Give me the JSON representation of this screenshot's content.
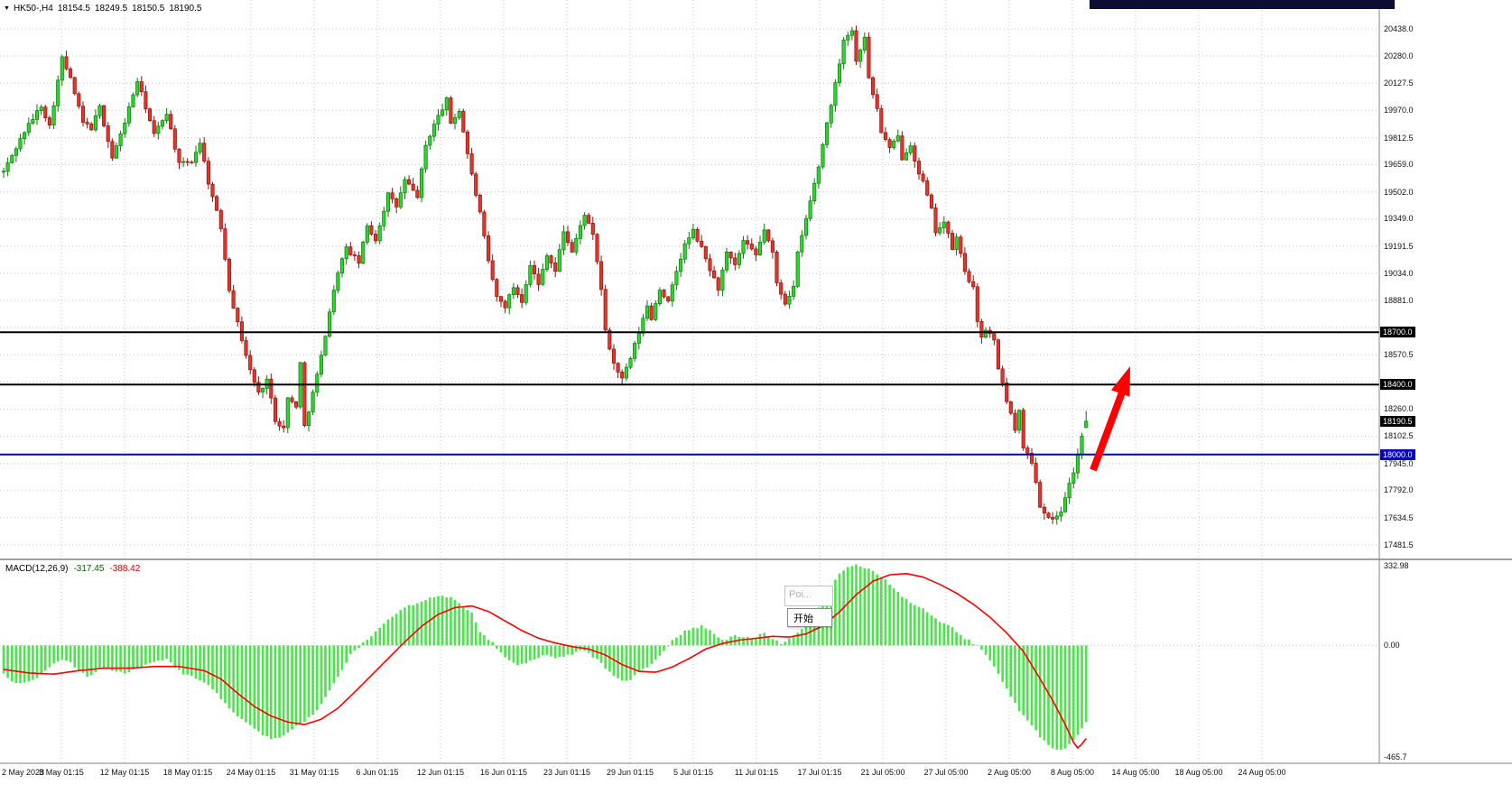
{
  "header": {
    "collapse_icon": "▼",
    "symbol_period": "HK50-,H4",
    "open": "18154.5",
    "high": "18249.5",
    "low": "18150.5",
    "close": "18190.5"
  },
  "macd_panel": {
    "label": "MACD(12,26,9)",
    "main_value": "-317.45",
    "signal_value": "-388.42",
    "axis_labels": [
      "332.98",
      "0.00",
      "-465.7"
    ]
  },
  "popup": {
    "tooltip_text": "Poi...",
    "button_text": "开始"
  },
  "colors": {
    "bull": "#2ed52e",
    "bull_border": "#0b7a0b",
    "bear": "#e5352b",
    "bear_border": "#8f130b",
    "grid": "#c4c4c4",
    "separator": "#808080",
    "macd_bar": "#4de34d",
    "macd_signal": "#ff0000",
    "level_black": "#000000",
    "level_blue": "#0000d2",
    "arrow": "#ff0f00",
    "axis_text": "#111111"
  },
  "price_axis": {
    "ticks": [
      "20438.0",
      "20280.0",
      "20127.5",
      "19970.0",
      "19812.5",
      "19659.0",
      "19502.0",
      "19349.0",
      "19191.5",
      "19034.0",
      "18881.0",
      "18570.5",
      "18260.0",
      "18102.5",
      "17945.0",
      "17792.0",
      "17634.5",
      "17481.5"
    ],
    "markers": [
      {
        "label": "18700.0",
        "value": 18700.0,
        "style": "black"
      },
      {
        "label": "18400.0",
        "value": 18400.0,
        "style": "black"
      },
      {
        "label": "18190.5",
        "value": 18190.5,
        "style": "black"
      },
      {
        "label": "18000.0",
        "value": 18000.0,
        "style": "blue"
      }
    ]
  },
  "time_axis": {
    "labels": [
      "2 May 2023",
      "8 May 01:15",
      "12 May 01:15",
      "18 May 01:15",
      "24 May 01:15",
      "31 May 01:15",
      "6 Jun 01:15",
      "12 Jun 01:15",
      "16 Jun 01:15",
      "23 Jun 01:15",
      "29 Jun 01:15",
      "5 Jul 01:15",
      "11 Jul 01:15",
      "17 Jul 01:15",
      "21 Jul 05:00",
      "27 Jul 05:00",
      "2 Aug 05:00",
      "8 Aug 05:00",
      "14 Aug 05:00",
      "18 Aug 05:00",
      "24 Aug 05:00"
    ]
  },
  "chart_data": {
    "type": "candlestick",
    "title": "HK50-,H4",
    "symbol": "HK50",
    "timeframe": "H4",
    "quote": {
      "open": 18154.5,
      "high": 18249.5,
      "low": 18150.5,
      "close": 18190.5
    },
    "visible_price_range": [
      17481.5,
      20438.0
    ],
    "candles_n": 260,
    "close_path": [
      [
        0,
        19620
      ],
      [
        5,
        19850
      ],
      [
        9,
        20000
      ],
      [
        11,
        19880
      ],
      [
        14,
        20270
      ],
      [
        16,
        20150
      ],
      [
        19,
        19900
      ],
      [
        21,
        19870
      ],
      [
        23,
        19990
      ],
      [
        26,
        19700
      ],
      [
        28,
        19830
      ],
      [
        32,
        20140
      ],
      [
        34,
        19990
      ],
      [
        36,
        19830
      ],
      [
        39,
        19960
      ],
      [
        42,
        19660
      ],
      [
        45,
        19680
      ],
      [
        47,
        19790
      ],
      [
        49,
        19560
      ],
      [
        52,
        19300
      ],
      [
        54,
        18950
      ],
      [
        56,
        18750
      ],
      [
        59,
        18480
      ],
      [
        61,
        18350
      ],
      [
        63,
        18430
      ],
      [
        65,
        18200
      ],
      [
        67,
        18150
      ],
      [
        68,
        18320
      ],
      [
        70,
        18280
      ],
      [
        71,
        18520
      ],
      [
        72,
        18160
      ],
      [
        74,
        18350
      ],
      [
        76,
        18560
      ],
      [
        78,
        18820
      ],
      [
        80,
        19050
      ],
      [
        82,
        19180
      ],
      [
        85,
        19100
      ],
      [
        87,
        19310
      ],
      [
        89,
        19230
      ],
      [
        92,
        19490
      ],
      [
        94,
        19420
      ],
      [
        96,
        19570
      ],
      [
        99,
        19480
      ],
      [
        101,
        19770
      ],
      [
        103,
        19890
      ],
      [
        106,
        20030
      ],
      [
        107,
        19900
      ],
      [
        109,
        19970
      ],
      [
        110,
        19850
      ],
      [
        112,
        19600
      ],
      [
        114,
        19380
      ],
      [
        116,
        19100
      ],
      [
        118,
        18900
      ],
      [
        120,
        18850
      ],
      [
        122,
        18960
      ],
      [
        124,
        18880
      ],
      [
        126,
        19090
      ],
      [
        128,
        18970
      ],
      [
        130,
        19150
      ],
      [
        132,
        19050
      ],
      [
        134,
        19280
      ],
      [
        136,
        19160
      ],
      [
        139,
        19380
      ],
      [
        141,
        19250
      ],
      [
        143,
        18950
      ],
      [
        144,
        18700
      ],
      [
        146,
        18520
      ],
      [
        148,
        18430
      ],
      [
        150,
        18550
      ],
      [
        152,
        18700
      ],
      [
        154,
        18850
      ],
      [
        155,
        18780
      ],
      [
        157,
        18950
      ],
      [
        159,
        18870
      ],
      [
        161,
        19050
      ],
      [
        163,
        19200
      ],
      [
        165,
        19280
      ],
      [
        167,
        19180
      ],
      [
        169,
        19060
      ],
      [
        171,
        18950
      ],
      [
        173,
        19150
      ],
      [
        175,
        19080
      ],
      [
        177,
        19220
      ],
      [
        180,
        19140
      ],
      [
        182,
        19290
      ],
      [
        184,
        19150
      ],
      [
        185,
        18980
      ],
      [
        187,
        18870
      ],
      [
        189,
        18960
      ],
      [
        190,
        19150
      ],
      [
        193,
        19450
      ],
      [
        195,
        19650
      ],
      [
        197,
        19900
      ],
      [
        199,
        20120
      ],
      [
        201,
        20380
      ],
      [
        203,
        20430
      ],
      [
        204,
        20250
      ],
      [
        206,
        20400
      ],
      [
        207,
        20150
      ],
      [
        209,
        19980
      ],
      [
        210,
        19850
      ],
      [
        212,
        19750
      ],
      [
        214,
        19820
      ],
      [
        215,
        19700
      ],
      [
        217,
        19780
      ],
      [
        219,
        19600
      ],
      [
        220,
        19560
      ],
      [
        222,
        19400
      ],
      [
        223,
        19280
      ],
      [
        225,
        19330
      ],
      [
        227,
        19180
      ],
      [
        228,
        19240
      ],
      [
        230,
        19050
      ],
      [
        232,
        18950
      ],
      [
        233,
        18750
      ],
      [
        234,
        18680
      ],
      [
        235,
        18720
      ],
      [
        237,
        18650
      ],
      [
        238,
        18480
      ],
      [
        239,
        18420
      ],
      [
        240,
        18300
      ],
      [
        242,
        18150
      ],
      [
        243,
        18250
      ],
      [
        244,
        18050
      ],
      [
        246,
        17950
      ],
      [
        247,
        17850
      ],
      [
        248,
        17700
      ],
      [
        250,
        17650
      ],
      [
        251,
        17620
      ],
      [
        253,
        17680
      ],
      [
        254,
        17760
      ],
      [
        256,
        17900
      ],
      [
        257,
        18000
      ],
      [
        258,
        18100
      ],
      [
        259,
        18190.5
      ]
    ],
    "support_resistance": [
      {
        "value": 18700.0,
        "color": "#000000"
      },
      {
        "value": 18400.0,
        "color": "#000000"
      },
      {
        "value": 18000.0,
        "color": "#0000d2"
      }
    ],
    "annotations": [
      {
        "type": "arrow",
        "direction": "up-right",
        "color": "#ff0000"
      }
    ],
    "macd": {
      "params": [
        12,
        26,
        9
      ],
      "main_last": -317.45,
      "signal_last": -388.42,
      "axis_range": [
        -465.7,
        332.98
      ],
      "hist_path": [
        [
          0,
          -120
        ],
        [
          3,
          -160
        ],
        [
          8,
          -140
        ],
        [
          12,
          -70
        ],
        [
          15,
          -60
        ],
        [
          20,
          -130
        ],
        [
          24,
          -90
        ],
        [
          29,
          -120
        ],
        [
          34,
          -80
        ],
        [
          39,
          -60
        ],
        [
          43,
          -120
        ],
        [
          48,
          -150
        ],
        [
          52,
          -220
        ],
        [
          56,
          -300
        ],
        [
          61,
          -360
        ],
        [
          64,
          -395
        ],
        [
          67,
          -380
        ],
        [
          70,
          -340
        ],
        [
          74,
          -290
        ],
        [
          77,
          -220
        ],
        [
          80,
          -130
        ],
        [
          83,
          -40
        ],
        [
          86,
          10
        ],
        [
          89,
          60
        ],
        [
          92,
          110
        ],
        [
          95,
          150
        ],
        [
          99,
          180
        ],
        [
          102,
          200
        ],
        [
          105,
          210
        ],
        [
          108,
          190
        ],
        [
          112,
          140
        ],
        [
          114,
          60
        ],
        [
          117,
          10
        ],
        [
          119,
          -30
        ],
        [
          121,
          -60
        ],
        [
          123,
          -80
        ],
        [
          127,
          -60
        ],
        [
          129,
          -40
        ],
        [
          132,
          -50
        ],
        [
          135,
          -40
        ],
        [
          139,
          -20
        ],
        [
          142,
          -60
        ],
        [
          145,
          -110
        ],
        [
          148,
          -150
        ],
        [
          150,
          -140
        ],
        [
          154,
          -90
        ],
        [
          157,
          -40
        ],
        [
          160,
          20
        ],
        [
          163,
          60
        ],
        [
          167,
          80
        ],
        [
          170,
          50
        ],
        [
          172,
          20
        ],
        [
          175,
          40
        ],
        [
          179,
          30
        ],
        [
          182,
          50
        ],
        [
          184,
          30
        ],
        [
          186,
          10
        ],
        [
          188,
          30
        ],
        [
          192,
          80
        ],
        [
          194,
          130
        ],
        [
          196,
          190
        ],
        [
          198,
          250
        ],
        [
          200,
          300
        ],
        [
          202,
          330
        ],
        [
          204,
          333
        ],
        [
          207,
          320
        ],
        [
          210,
          290
        ],
        [
          213,
          240
        ],
        [
          216,
          190
        ],
        [
          220,
          150
        ],
        [
          223,
          110
        ],
        [
          226,
          90
        ],
        [
          228,
          60
        ],
        [
          230,
          30
        ],
        [
          233,
          0
        ],
        [
          235,
          -40
        ],
        [
          237,
          -90
        ],
        [
          239,
          -150
        ],
        [
          241,
          -210
        ],
        [
          243,
          -270
        ],
        [
          246,
          -330
        ],
        [
          248,
          -380
        ],
        [
          250,
          -420
        ],
        [
          252,
          -440
        ],
        [
          254,
          -430
        ],
        [
          256,
          -400
        ],
        [
          258,
          -350
        ],
        [
          259,
          -317.45
        ]
      ],
      "signal_path": [
        [
          0,
          -100
        ],
        [
          6,
          -115
        ],
        [
          12,
          -120
        ],
        [
          18,
          -105
        ],
        [
          24,
          -95
        ],
        [
          30,
          -95
        ],
        [
          36,
          -88
        ],
        [
          42,
          -88
        ],
        [
          48,
          -105
        ],
        [
          52,
          -140
        ],
        [
          56,
          -200
        ],
        [
          60,
          -255
        ],
        [
          64,
          -295
        ],
        [
          68,
          -320
        ],
        [
          72,
          -330
        ],
        [
          76,
          -308
        ],
        [
          80,
          -262
        ],
        [
          84,
          -195
        ],
        [
          88,
          -125
        ],
        [
          92,
          -55
        ],
        [
          96,
          15
        ],
        [
          100,
          80
        ],
        [
          104,
          130
        ],
        [
          108,
          158
        ],
        [
          112,
          165
        ],
        [
          116,
          142
        ],
        [
          120,
          102
        ],
        [
          124,
          62
        ],
        [
          128,
          30
        ],
        [
          132,
          10
        ],
        [
          136,
          -5
        ],
        [
          140,
          -15
        ],
        [
          144,
          -40
        ],
        [
          148,
          -80
        ],
        [
          152,
          -108
        ],
        [
          156,
          -112
        ],
        [
          160,
          -90
        ],
        [
          164,
          -55
        ],
        [
          168,
          -15
        ],
        [
          172,
          8
        ],
        [
          176,
          22
        ],
        [
          180,
          30
        ],
        [
          184,
          38
        ],
        [
          188,
          35
        ],
        [
          192,
          48
        ],
        [
          196,
          82
        ],
        [
          200,
          140
        ],
        [
          204,
          212
        ],
        [
          208,
          268
        ],
        [
          212,
          295
        ],
        [
          216,
          300
        ],
        [
          220,
          285
        ],
        [
          224,
          255
        ],
        [
          228,
          218
        ],
        [
          232,
          172
        ],
        [
          236,
          118
        ],
        [
          240,
          52
        ],
        [
          244,
          -25
        ],
        [
          248,
          -140
        ],
        [
          251,
          -230
        ],
        [
          254,
          -330
        ],
        [
          256,
          -405
        ],
        [
          257,
          -428
        ],
        [
          258,
          -412
        ],
        [
          259,
          -388.42
        ]
      ]
    }
  }
}
